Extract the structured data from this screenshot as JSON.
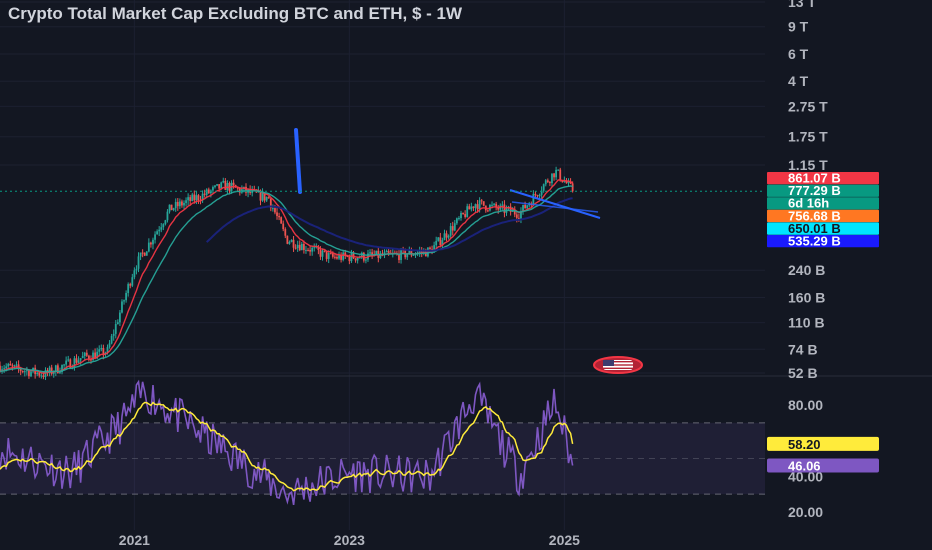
{
  "chart_data": [
    {
      "type": "candlestick",
      "title": "Crypto Total Market Cap Excluding BTC and ETH, $ - 1W",
      "y_scale": "log",
      "price_axis_ticks": [
        "13 T",
        "9 T",
        "6 T",
        "4 T",
        "2.75 T",
        "1.75 T",
        "1.15 T",
        "240 B",
        "160 B",
        "110 B",
        "74 B",
        "52 B"
      ],
      "time_axis_ticks": [
        "2021",
        "2023",
        "2025"
      ],
      "legend": "none",
      "grid": true,
      "price_labels": [
        {
          "text": "861.07 B",
          "color": "#f23645",
          "text_color": "#ffffff"
        },
        {
          "text": "777.29 B",
          "color": "#089981",
          "text_color": "#ffffff"
        },
        {
          "text": "6d 16h",
          "color": "#089981",
          "text_color": "#ffffff"
        },
        {
          "text": "756.68 B",
          "color": "#ff7722",
          "text_color": "#ffffff"
        },
        {
          "text": "650.01 B",
          "color": "#00e5ff",
          "text_color": "#131722"
        },
        {
          "text": "535.29 B",
          "color": "#1a1aff",
          "text_color": "#ffffff"
        }
      ],
      "last_close_b": 777.29,
      "moving_averages": [
        {
          "color": "#f23645",
          "last_b": 756.68
        },
        {
          "color": "#26a69a",
          "last_b": 650.01
        },
        {
          "color": "#1a237e",
          "last_b": 535.29
        }
      ],
      "series_approx_b": [
        {
          "date": "2019-10",
          "close": 58
        },
        {
          "date": "2020-03",
          "close": 51
        },
        {
          "date": "2020-07",
          "close": 65
        },
        {
          "date": "2020-10",
          "close": 72
        },
        {
          "date": "2021-01",
          "close": 250
        },
        {
          "date": "2021-05",
          "close": 600
        },
        {
          "date": "2021-09",
          "close": 750
        },
        {
          "date": "2021-11",
          "close": 850
        },
        {
          "date": "2022-04",
          "close": 700
        },
        {
          "date": "2022-06",
          "close": 380
        },
        {
          "date": "2022-11",
          "close": 290
        },
        {
          "date": "2023-06",
          "close": 300
        },
        {
          "date": "2023-10",
          "close": 320
        },
        {
          "date": "2024-03",
          "close": 650
        },
        {
          "date": "2024-08",
          "close": 560
        },
        {
          "date": "2024-12",
          "close": 1050
        },
        {
          "date": "2025-02",
          "close": 780
        }
      ],
      "annotation_icon": "us-flag-icon"
    },
    {
      "type": "line",
      "name": "RSI",
      "rsi_axis_ticks": [
        "80.00",
        "40.00",
        "20.00"
      ],
      "band": [
        30,
        70
      ],
      "rsi_value_label": {
        "text": "46.06",
        "color": "#7e57c2"
      },
      "rsi_ma_label": {
        "text": "58.20",
        "color": "#ffeb3b"
      },
      "rsi_approx": [
        {
          "date": "2019-10",
          "rsi": 55
        },
        {
          "date": "2020-06",
          "rsi": 42
        },
        {
          "date": "2020-12",
          "rsi": 72
        },
        {
          "date": "2021-02",
          "rsi": 88
        },
        {
          "date": "2021-09",
          "rsi": 62
        },
        {
          "date": "2022-06",
          "rsi": 30
        },
        {
          "date": "2023-01",
          "rsi": 42
        },
        {
          "date": "2023-10",
          "rsi": 40
        },
        {
          "date": "2024-03",
          "rsi": 86
        },
        {
          "date": "2024-08",
          "rsi": 40
        },
        {
          "date": "2024-12",
          "rsi": 82
        },
        {
          "date": "2025-02",
          "rsi": 46
        }
      ]
    }
  ]
}
